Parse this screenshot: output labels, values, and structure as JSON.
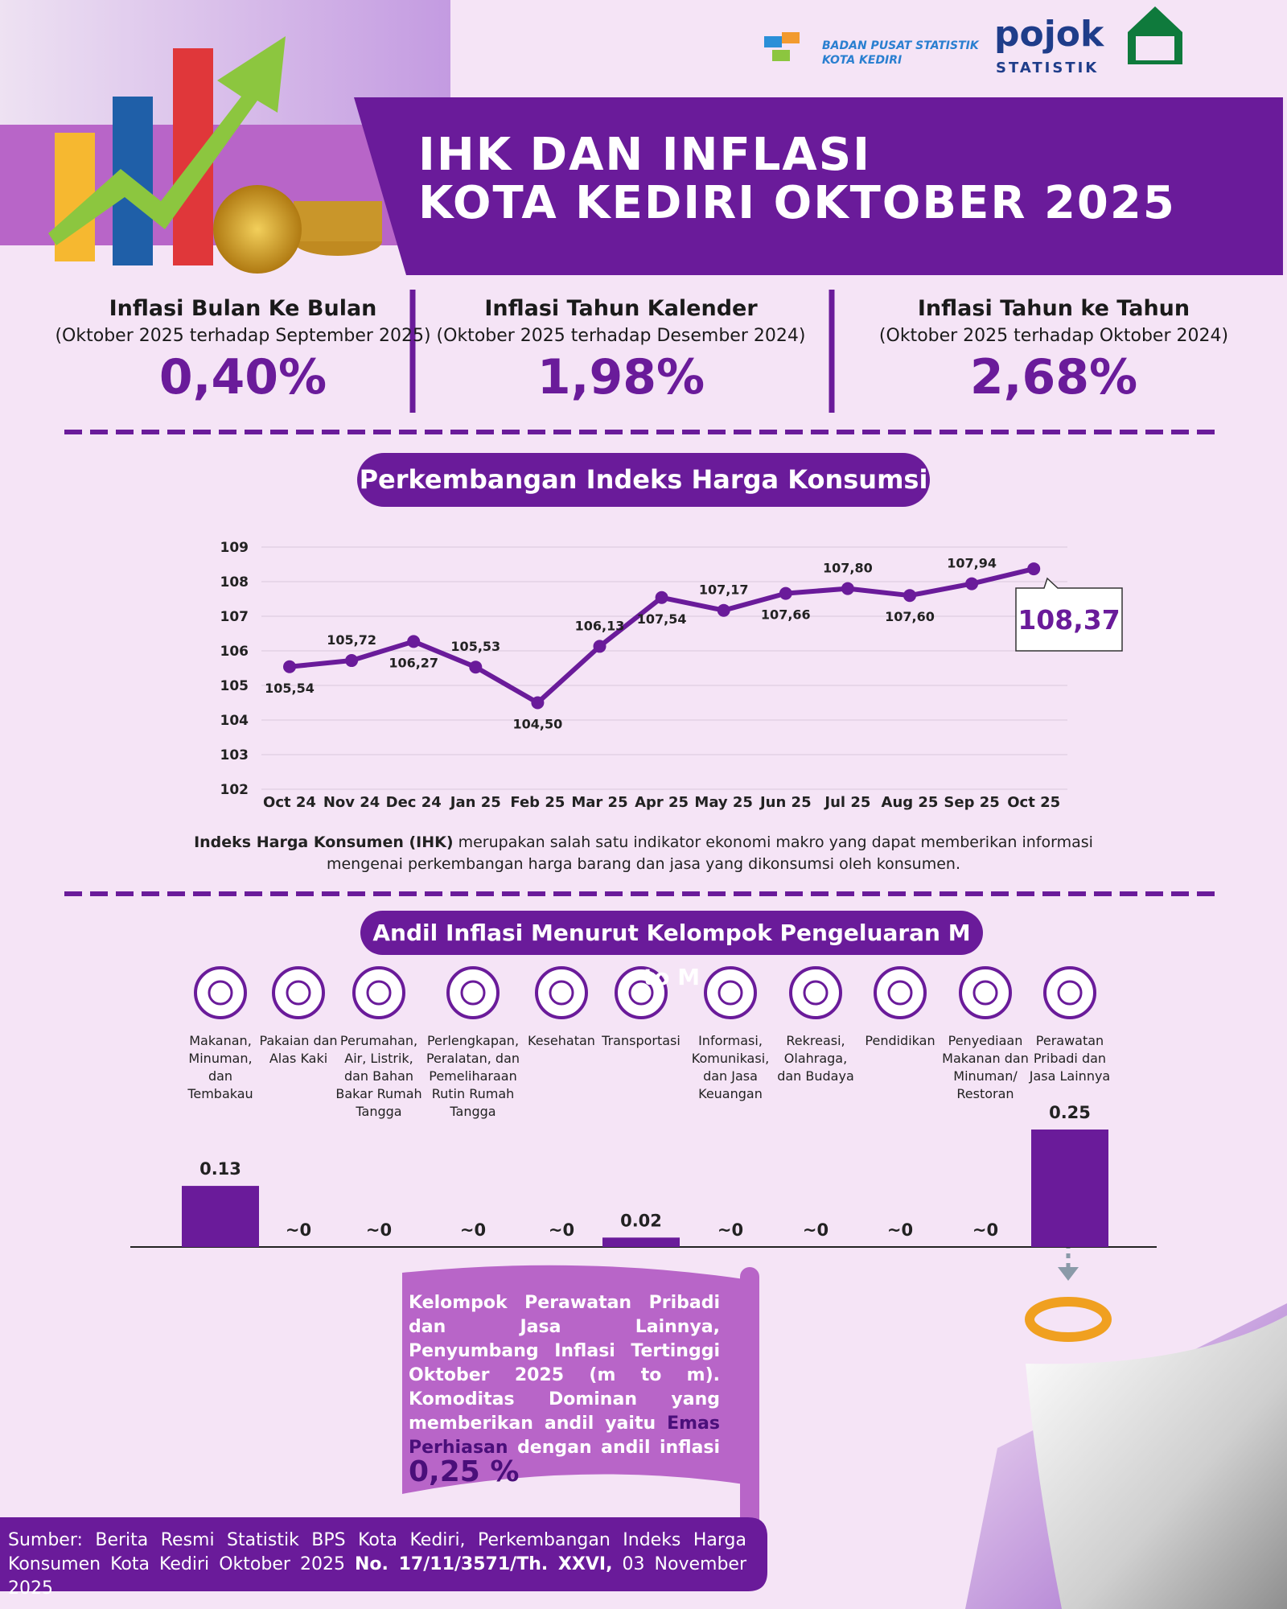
{
  "header": {
    "agency": "BADAN PUSAT STATISTIK",
    "agency_city": "KOTA KEDIRI",
    "brand": "pojok",
    "brand_sub": "STATISTIK",
    "title_line1": "IHK DAN INFLASI",
    "title_line2": "KOTA KEDIRI OKTOBER 2025"
  },
  "stats": [
    {
      "title": "Inflasi Bulan Ke Bulan",
      "period": "(Oktober 2025 terhadap September 2025)",
      "value": "0,40%"
    },
    {
      "title": "Inflasi Tahun Kalender",
      "period": "(Oktober 2025 terhadap Desember 2024)",
      "value": "1,98%"
    },
    {
      "title": "Inflasi Tahun ke Tahun",
      "period": "(Oktober 2025 terhadap Oktober 2024)",
      "value": "2,68%"
    }
  ],
  "chart_data": [
    {
      "type": "line",
      "title": "Perkembangan Indeks Harga Konsumsi",
      "categories": [
        "Oct 24",
        "Nov 24",
        "Dec 24",
        "Jan 25",
        "Feb 25",
        "Mar 25",
        "Apr 25",
        "May 25",
        "Jun 25",
        "Jul 25",
        "Aug 25",
        "Sep 25",
        "Oct 25"
      ],
      "values": [
        105.54,
        105.72,
        106.27,
        105.53,
        104.5,
        106.13,
        107.54,
        107.17,
        107.66,
        107.8,
        107.6,
        107.94,
        108.37
      ],
      "value_labels": [
        "105,54",
        "105,72",
        "106,27",
        "105,53",
        "104,50",
        "106,13",
        "107,54",
        "107,17",
        "107,66",
        "107,80",
        "107,60",
        "107,94",
        "108,37"
      ],
      "ylim": [
        102,
        109
      ],
      "yticks": [
        102,
        103,
        104,
        105,
        106,
        107,
        108,
        109
      ],
      "grid": true,
      "color": "#6a1b9a"
    },
    {
      "type": "bar",
      "title": "Andil Inflasi Menurut Kelompok Pengeluaran M to M",
      "categories": [
        "Makanan, Minuman, dan Tembakau",
        "Pakaian dan Alas Kaki",
        "Perumahan, Air, Listrik, dan Bahan Bakar Rumah Tangga",
        "Perlengkapan, Peralatan, dan Pemeliharaan Rutin Rumah Tangga",
        "Kesehatan",
        "Transportasi",
        "Informasi, Komunikasi, dan Jasa Keuangan",
        "Rekreasi, Olahraga, dan Budaya",
        "Pendidikan",
        "Penyediaan Makanan dan Minuman/ Restoran",
        "Perawatan Pribadi dan Jasa Lainnya"
      ],
      "values": [
        0.13,
        0,
        0,
        0,
        0,
        0.02,
        0,
        0,
        0,
        0,
        0.25
      ],
      "value_labels": [
        "0.13",
        "~0",
        "~0",
        "~0",
        "~0",
        "0.02",
        "~0",
        "~0",
        "~0",
        "~0",
        "0.25"
      ],
      "color": "#6a1b9a"
    }
  ],
  "description": {
    "bold": "Indeks Harga Konsumen (IHK)",
    "text": "merupakan salah satu indikator ekonomi makro yang dapat memberikan informasi mengenai perkembangan harga barang dan jasa yang dikonsumsi oleh konsumen."
  },
  "callout": {
    "text": "Kelompok Perawatan Pribadi dan Jasa Lainnya, Penyumbang Inflasi Tertinggi Oktober 2025 (m to m). Komoditas Dominan yang memberikan andil yaitu",
    "highlight": "Emas Perhiasan",
    "text2": "dengan andil inflasi",
    "value": "0,25 %"
  },
  "source": {
    "text": "Sumber: Berita Resmi Statistik BPS Kota Kediri, Perkembangan Indeks Harga Konsumen Kota Kediri Oktober 2025",
    "bold": "No. 17/11/3571/Th. XXVI,",
    "date": "03 November 2025"
  }
}
